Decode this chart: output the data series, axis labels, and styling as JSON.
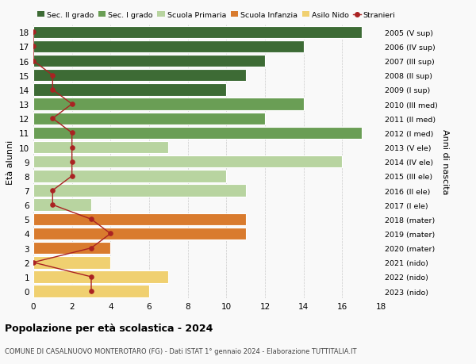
{
  "ages": [
    0,
    1,
    2,
    3,
    4,
    5,
    6,
    7,
    8,
    9,
    10,
    11,
    12,
    13,
    14,
    15,
    16,
    17,
    18
  ],
  "right_labels": [
    "2023 (nido)",
    "2022 (nido)",
    "2021 (nido)",
    "2020 (mater)",
    "2019 (mater)",
    "2018 (mater)",
    "2017 (I ele)",
    "2016 (II ele)",
    "2015 (III ele)",
    "2014 (IV ele)",
    "2013 (V ele)",
    "2012 (I med)",
    "2011 (II med)",
    "2010 (III med)",
    "2009 (I sup)",
    "2008 (II sup)",
    "2007 (III sup)",
    "2006 (IV sup)",
    "2005 (V sup)"
  ],
  "bar_values": [
    6,
    7,
    4,
    4,
    11,
    11,
    3,
    11,
    10,
    16,
    7,
    17,
    12,
    14,
    10,
    11,
    12,
    14,
    17
  ],
  "bar_colors": [
    "#f0d070",
    "#f0d070",
    "#f0d070",
    "#d97b2e",
    "#d97b2e",
    "#d97b2e",
    "#b8d4a0",
    "#b8d4a0",
    "#b8d4a0",
    "#b8d4a0",
    "#b8d4a0",
    "#6a9e55",
    "#6a9e55",
    "#6a9e55",
    "#3d6b35",
    "#3d6b35",
    "#3d6b35",
    "#3d6b35",
    "#3d6b35"
  ],
  "stranieri_values": [
    3,
    3,
    0,
    3,
    4,
    3,
    1,
    1,
    2,
    2,
    2,
    2,
    1,
    2,
    1,
    1,
    0,
    0,
    0
  ],
  "legend_labels": [
    "Sec. II grado",
    "Sec. I grado",
    "Scuola Primaria",
    "Scuola Infanzia",
    "Asilo Nido",
    "Stranieri"
  ],
  "legend_colors": [
    "#3d6b35",
    "#6a9e55",
    "#b8d4a0",
    "#d97b2e",
    "#f0d070",
    "#aa2222"
  ],
  "ylabel": "Età alunni",
  "right_ylabel": "Anni di nascita",
  "title": "Popolazione per età scolastica - 2024",
  "subtitle": "COMUNE DI CASALNUOVO MONTEROTARO (FG) - Dati ISTAT 1° gennaio 2024 - Elaborazione TUTTITALIA.IT",
  "xlim": [
    0,
    18
  ],
  "bg_color": "#f9f9f9",
  "bar_edge_color": "#ffffff",
  "stranieri_line_color": "#aa2222",
  "stranieri_dot_color": "#aa2222"
}
